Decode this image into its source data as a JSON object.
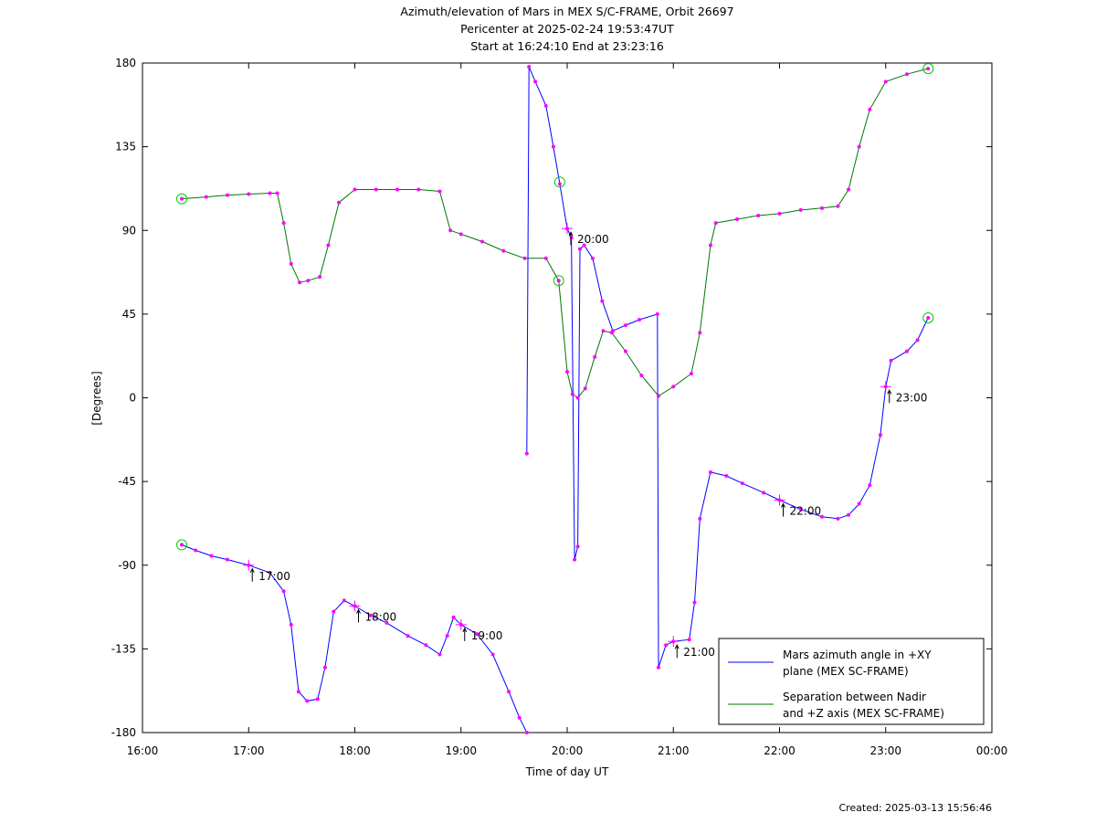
{
  "chart_data": {
    "type": "line",
    "title_lines": [
      "Azimuth/elevation of Mars in MEX S/C-FRAME,  Orbit 26697",
      "Pericenter at 2025-02-24 19:53:47UT",
      "Start at 16:24:10 End at 23:23:16"
    ],
    "xlabel": "Time of day UT",
    "ylabel": "[Degrees]",
    "xlim": [
      16.0,
      24.0
    ],
    "ylim": [
      -180,
      180
    ],
    "x_ticks": [
      16,
      17,
      18,
      19,
      20,
      21,
      22,
      23,
      24
    ],
    "x_tick_labels": [
      "16:00",
      "17:00",
      "18:00",
      "19:00",
      "20:00",
      "21:00",
      "22:00",
      "23:00",
      "00:00"
    ],
    "y_ticks": [
      180,
      135,
      90,
      45,
      0,
      -45,
      -90,
      -135,
      -180
    ],
    "y_tick_labels": [
      "180",
      "135",
      "90",
      "45",
      "0",
      "-45",
      "-90",
      "-135",
      "-180"
    ],
    "grid": false,
    "legend_position": "bottom-right",
    "series": [
      {
        "name": "Mars azimuth angle in +XY\nplane (MEX SC-FRAME)",
        "color": "#0000ff",
        "points": [
          [
            16.37,
            -79
          ],
          [
            16.5,
            -82
          ],
          [
            16.65,
            -85
          ],
          [
            16.8,
            -87
          ],
          [
            17.0,
            -90
          ],
          [
            17.2,
            -94
          ],
          [
            17.33,
            -104
          ],
          [
            17.4,
            -122
          ],
          [
            17.47,
            -158
          ],
          [
            17.55,
            -163
          ],
          [
            17.65,
            -162
          ],
          [
            17.72,
            -145
          ],
          [
            17.8,
            -115
          ],
          [
            17.9,
            -109
          ],
          [
            18.0,
            -112
          ],
          [
            18.15,
            -117
          ],
          [
            18.3,
            -121
          ],
          [
            18.5,
            -128
          ],
          [
            18.67,
            -133
          ],
          [
            18.8,
            -138
          ],
          [
            18.87,
            -128
          ],
          [
            18.93,
            -118
          ],
          [
            19.0,
            -122
          ],
          [
            19.15,
            -127
          ],
          [
            19.3,
            -138
          ],
          [
            19.45,
            -158
          ],
          [
            19.55,
            -172
          ],
          [
            19.62,
            -180
          ]
        ],
        "segment2": [
          [
            19.62,
            -30
          ],
          [
            19.64,
            178
          ],
          [
            19.7,
            170
          ],
          [
            19.8,
            157
          ],
          [
            19.87,
            135
          ],
          [
            19.93,
            115
          ],
          [
            20.0,
            91
          ],
          [
            20.04,
            86
          ],
          [
            20.07,
            -87
          ],
          [
            20.1,
            -80
          ],
          [
            20.12,
            80
          ],
          [
            20.16,
            82
          ],
          [
            20.24,
            75
          ],
          [
            20.33,
            52
          ],
          [
            20.43,
            36
          ],
          [
            20.55,
            39
          ],
          [
            20.68,
            42
          ],
          [
            20.85,
            45
          ],
          [
            20.86,
            -145
          ],
          [
            20.93,
            -133
          ],
          [
            21.0,
            -131
          ],
          [
            21.15,
            -130
          ],
          [
            21.2,
            -110
          ],
          [
            21.25,
            -65
          ],
          [
            21.35,
            -40
          ],
          [
            21.5,
            -42
          ],
          [
            21.65,
            -46
          ],
          [
            21.85,
            -51
          ],
          [
            22.0,
            -55
          ],
          [
            22.2,
            -60
          ],
          [
            22.4,
            -64
          ],
          [
            22.55,
            -65
          ],
          [
            22.65,
            -63
          ],
          [
            22.75,
            -57
          ],
          [
            22.85,
            -47
          ],
          [
            22.95,
            -20
          ],
          [
            23.0,
            6
          ],
          [
            23.05,
            20
          ],
          [
            23.2,
            25
          ],
          [
            23.3,
            31
          ],
          [
            23.4,
            43
          ]
        ]
      },
      {
        "name": "Separation between Nadir\nand +Z axis (MEX SC-FRAME)",
        "color": "#007700",
        "points": [
          [
            16.37,
            107
          ],
          [
            16.6,
            108
          ],
          [
            16.8,
            109
          ],
          [
            17.0,
            109.5
          ],
          [
            17.2,
            110
          ],
          [
            17.27,
            110
          ],
          [
            17.33,
            94
          ],
          [
            17.4,
            72
          ],
          [
            17.48,
            62
          ],
          [
            17.56,
            63
          ],
          [
            17.67,
            65
          ],
          [
            17.75,
            82
          ],
          [
            17.85,
            105
          ],
          [
            18.0,
            112
          ],
          [
            18.2,
            112
          ],
          [
            18.4,
            112
          ],
          [
            18.6,
            112
          ],
          [
            18.8,
            111
          ],
          [
            18.9,
            90
          ],
          [
            19.0,
            88
          ],
          [
            19.2,
            84
          ],
          [
            19.4,
            79
          ],
          [
            19.6,
            75
          ],
          [
            19.8,
            75
          ],
          [
            19.92,
            63
          ],
          [
            20.0,
            14
          ],
          [
            20.05,
            2
          ],
          [
            20.1,
            0
          ],
          [
            20.17,
            5
          ],
          [
            20.26,
            22
          ],
          [
            20.34,
            36
          ],
          [
            20.42,
            35
          ],
          [
            20.55,
            25
          ],
          [
            20.7,
            12
          ],
          [
            20.86,
            1
          ],
          [
            21.0,
            6
          ],
          [
            21.17,
            13
          ],
          [
            21.25,
            35
          ],
          [
            21.35,
            82
          ],
          [
            21.4,
            94
          ],
          [
            21.6,
            96
          ],
          [
            21.8,
            98
          ],
          [
            22.0,
            99
          ],
          [
            22.2,
            101
          ],
          [
            22.4,
            102
          ],
          [
            22.55,
            103
          ],
          [
            22.65,
            112
          ],
          [
            22.75,
            135
          ],
          [
            22.85,
            155
          ],
          [
            23.0,
            170
          ],
          [
            23.2,
            174
          ],
          [
            23.4,
            177
          ]
        ]
      }
    ],
    "markers": {
      "color": "#ff00ff",
      "circle_color": "#00cc00",
      "circles": [
        [
          16.37,
          -79
        ],
        [
          16.37,
          107
        ],
        [
          19.93,
          116
        ],
        [
          19.92,
          63
        ],
        [
          23.4,
          43
        ],
        [
          23.4,
          177
        ]
      ]
    },
    "time_labels": [
      {
        "x": 17.0,
        "y": -90,
        "label": "17:00"
      },
      {
        "x": 18.0,
        "y": -112,
        "label": "18:00"
      },
      {
        "x": 19.0,
        "y": -122,
        "label": "19:00"
      },
      {
        "x": 20.0,
        "y": 91,
        "label": "20:00"
      },
      {
        "x": 21.0,
        "y": -131,
        "label": "21:00"
      },
      {
        "x": 22.0,
        "y": -55,
        "label": "22:00"
      },
      {
        "x": 23.0,
        "y": 6,
        "label": "23:00"
      }
    ]
  },
  "footer": {
    "created": "Created: 2025-03-13 15:56:46"
  }
}
